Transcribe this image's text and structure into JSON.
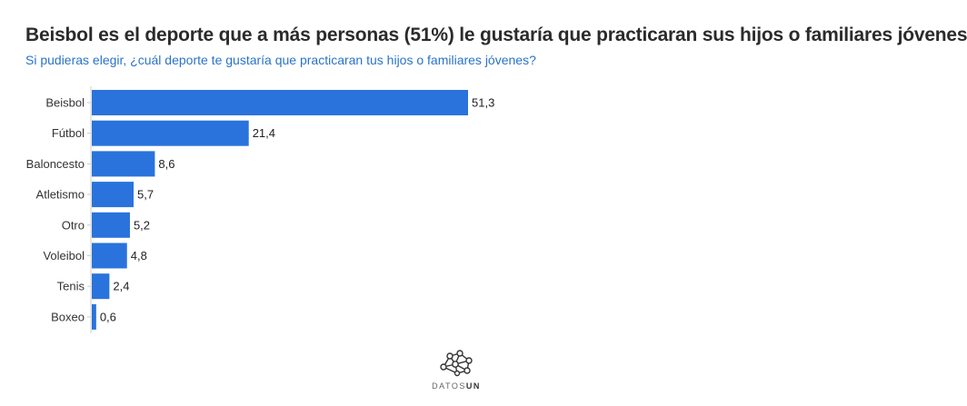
{
  "chart_data": {
    "type": "bar",
    "orientation": "horizontal",
    "title": "Beisbol es el deporte que a más personas (51%) le gustaría que practicaran sus hijos o familiares jóvenes",
    "subtitle": "Si pudieras elegir, ¿cuál deporte te gustaría que practicaran tus hijos o familiares jóvenes?",
    "categories": [
      "Beisbol",
      "Fútbol",
      "Baloncesto",
      "Atletismo",
      "Otro",
      "Voleibol",
      "Tenis",
      "Boxeo"
    ],
    "values": [
      51.3,
      21.4,
      8.6,
      5.7,
      5.2,
      4.8,
      2.4,
      0.6
    ],
    "value_labels": [
      "51,3",
      "21,4",
      "8,6",
      "5,7",
      "5,2",
      "4,8",
      "2,4",
      "0,6"
    ],
    "bar_color": "#2a73dc",
    "grid": false,
    "legend": "none"
  },
  "branding": {
    "logo_text_prefix": "DATOS",
    "logo_text_suffix": "UN",
    "logo_icon": "network-nodes-icon"
  }
}
